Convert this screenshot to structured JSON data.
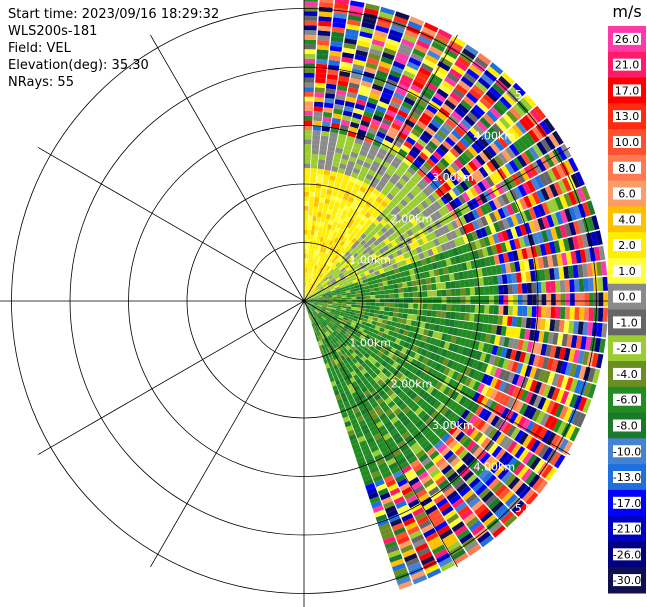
{
  "header": {
    "start_time": "Start time: 2023/09/16 18:29:32",
    "instrument": "WLS200s-181",
    "field": "Field: VEL",
    "elevation": "Elevation(deg): 35.30",
    "nrays": "NRays: 55"
  },
  "colorbar": {
    "unit": "m/s",
    "ticks": [
      "26.0",
      "21.0",
      "17.0",
      "13.0",
      "10.0",
      "8.0",
      "6.0",
      "4.0",
      "2.0",
      "1.0",
      "0.0",
      "-1.0",
      "-2.0",
      "-4.0",
      "-6.0",
      "-8.0",
      "-10.0",
      "-13.0",
      "-17.0",
      "-21.0",
      "-26.0",
      "-30.0"
    ],
    "colors": [
      "#ff3aa8",
      "#ff1a6a",
      "#ff0000",
      "#ff2a10",
      "#ff5030",
      "#ff7a52",
      "#ff9c66",
      "#ffc000",
      "#ffee00",
      "#ffff40",
      "#8a8a8a",
      "#666666",
      "#9acd32",
      "#6b8e23",
      "#228b22",
      "#1a7a2a",
      "#4682d4",
      "#1e6fe0",
      "#0000ff",
      "#0000c0",
      "#000080",
      "#101050"
    ]
  },
  "chart_data": {
    "type": "ppi",
    "field": "VEL",
    "units": "m/s",
    "range_ring_labels": [
      "1.00km",
      "2.00km",
      "3.00km",
      "4.00km",
      "5.00km"
    ],
    "range_rings_km": [
      1,
      2,
      3,
      4,
      5
    ],
    "max_range_km": 5.2,
    "sector_azimuth_deg": [
      0,
      162
    ],
    "nrays": 55,
    "clim": [
      -30,
      26
    ]
  }
}
